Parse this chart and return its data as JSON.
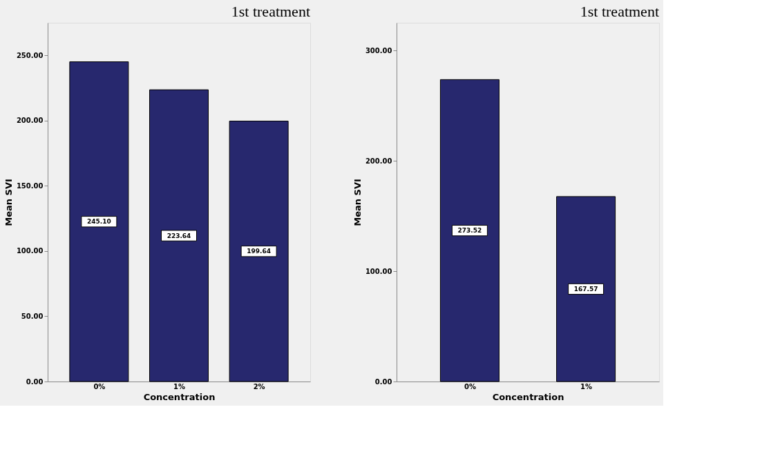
{
  "chart_data": [
    {
      "type": "bar",
      "title": "1st treatment",
      "xlabel": "Concentration",
      "ylabel": "Mean SVI",
      "categories": [
        "0%",
        "1%",
        "2%"
      ],
      "values": [
        245.1,
        223.64,
        199.64
      ],
      "value_labels": [
        "245.10",
        "223.64",
        "199.64"
      ],
      "color": "#27286e",
      "ylim": [
        0,
        275
      ],
      "yticks": [
        {
          "value": 0,
          "label": "0.00"
        },
        {
          "value": 50,
          "label": "50.00"
        },
        {
          "value": 100,
          "label": "100.00"
        },
        {
          "value": 150,
          "label": "150.00"
        },
        {
          "value": 200,
          "label": "200.00"
        },
        {
          "value": 250,
          "label": "250.00"
        }
      ],
      "grid": false
    },
    {
      "type": "bar",
      "title": "1st treatment",
      "xlabel": "Concentration",
      "ylabel": "Mean SVI",
      "categories": [
        "0%",
        "1%"
      ],
      "values": [
        273.52,
        167.57
      ],
      "value_labels": [
        "273.52",
        "167.57"
      ],
      "color": "#27286e",
      "ylim": [
        0,
        325
      ],
      "yticks": [
        {
          "value": 0,
          "label": "0.00"
        },
        {
          "value": 100,
          "label": "100.00"
        },
        {
          "value": 200,
          "label": "200.00"
        },
        {
          "value": 300,
          "label": "300.00"
        }
      ],
      "grid": false
    }
  ]
}
